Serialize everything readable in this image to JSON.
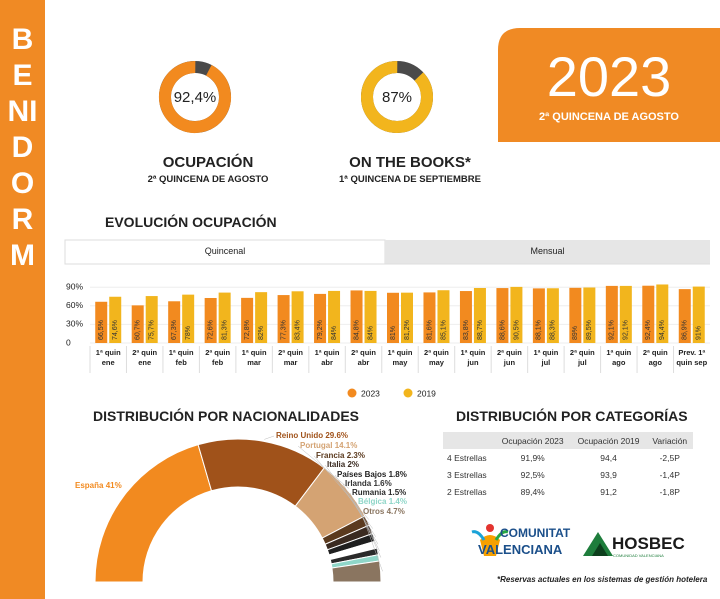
{
  "sidebar": {
    "title": "BENIDORM"
  },
  "header": {
    "year": "2023",
    "subtitle": "2ª QUINCENA DE AGOSTO"
  },
  "chart_data": [
    {
      "type": "donut",
      "title": "OCUPACIÓN",
      "subtitle": "2ª QUINCENA DE AGOSTO",
      "values": [
        92.4
      ],
      "value_labels": [
        "92,4%"
      ],
      "color": "#f28a1f",
      "track_color": "#4a4a4a"
    },
    {
      "type": "donut",
      "title": "ON THE BOOKS*",
      "subtitle": "1ª QUINCENA DE SEPTIEMBRE",
      "values": [
        87
      ],
      "value_labels": [
        "87%"
      ],
      "color": "#f2b51d",
      "track_color": "#4a4a4a"
    },
    {
      "type": "bar",
      "title": "EVOLUCIÓN OCUPACIÓN",
      "tabs": [
        "Quincenal",
        "Mensual"
      ],
      "active_tab": 0,
      "categories": [
        "1ª quin\nene",
        "2ª quin\nene",
        "1ª quin\nfeb",
        "2ª quin\nfeb",
        "1ª quin\nmar",
        "2ª quin\nmar",
        "1ª quin\nabr",
        "2ª quin\nabr",
        "1ª quin\nmay",
        "2ª quin\nmay",
        "1ª quin\njun",
        "2ª quin\njun",
        "1ª quin\njul",
        "2ª quin\njul",
        "1ª quin\nago",
        "2ª quin\nago",
        "Prev. 1ª\nquin sep"
      ],
      "series": [
        {
          "name": "2023",
          "color": "#f28a1f",
          "values": [
            66.5,
            60.7,
            67.3,
            72.6,
            72.8,
            77.3,
            79.2,
            84.8,
            81,
            81.6,
            83.8,
            88.6,
            88.1,
            89,
            92.1,
            92.4,
            86.9
          ],
          "value_labels": [
            "66,5%",
            "60,7%",
            "67,3%",
            "72,6%",
            "72,8%",
            "77,3%",
            "79,2%",
            "84,8%",
            "81%",
            "81,6%",
            "83,8%",
            "88,6%",
            "88,1%",
            "89%",
            "92,1%",
            "92,4%",
            "86,9%"
          ]
        },
        {
          "name": "2019",
          "color": "#f2b51d",
          "values": [
            74.6,
            75.7,
            78,
            81.3,
            82,
            83.4,
            84,
            84,
            81.2,
            85.1,
            88.7,
            90.5,
            88.3,
            89.5,
            92.1,
            94.4,
            91
          ],
          "value_labels": [
            "74,6%",
            "75,7%",
            "78%",
            "81,3%",
            "82%",
            "83,4%",
            "84%",
            "84%",
            "81,2%",
            "85,1%",
            "88,7%",
            "90,5%",
            "88,3%",
            "89,5%",
            "92,1%",
            "94,4%",
            "91%"
          ]
        }
      ],
      "ylim": [
        0,
        100
      ],
      "yticks": [
        0,
        {
          "value": 30,
          "label": "30%"
        },
        {
          "value": 60,
          "label": "60%"
        },
        {
          "value": 90,
          "label": "90%"
        }
      ],
      "grid": true,
      "legend": "bottom"
    },
    {
      "type": "semi-donut",
      "title": "DISTRIBUCIÓN POR NACIONALIDADES",
      "categories": [
        "España",
        "Reino Unido",
        "Portugal",
        "Francia",
        "Italia",
        "Países Bajos",
        "Irlanda",
        "Rumania",
        "Bélgica",
        "Otros"
      ],
      "values": [
        41,
        29.6,
        14.1,
        2.3,
        2,
        1.8,
        1.6,
        1.5,
        1.4,
        4.7
      ],
      "value_labels": [
        "41%",
        "29.6%",
        "14.1%",
        "2.3%",
        "2%",
        "1.8%",
        "1.6%",
        "1.5%",
        "1.4%",
        "4.7%"
      ],
      "colors": [
        "#f28a1f",
        "#a0521a",
        "#d4a373",
        "#5b3a1e",
        "#3a2a20",
        "#1f1f1f",
        "#ffffff",
        "#2a2a2a",
        "#8fd6c8",
        "#8a7560"
      ]
    }
  ],
  "table": {
    "title": "DISTRIBUCIÓN POR CATEGORÍAS",
    "header": [
      "Ocupación 2023",
      "Ocupación 2019",
      "Variación"
    ],
    "rows": [
      [
        "4 Estrellas",
        "91,9%",
        "94,4",
        "-2,5P"
      ],
      [
        "3 Estrellas",
        "92,5%",
        "93,9",
        "-1,4P"
      ],
      [
        "2 Estrellas",
        "89,4%",
        "91,2",
        "-1,8P"
      ]
    ]
  },
  "logos": {
    "comunitat": [
      "COMUNITAT",
      "VALENCIANA"
    ],
    "hosbec": "HOSBEC",
    "hosbec_sub": "COMUNIDAD VALENCIANA"
  },
  "footnote": "*Reservas actuales en los sistemas de gestión hotelera"
}
